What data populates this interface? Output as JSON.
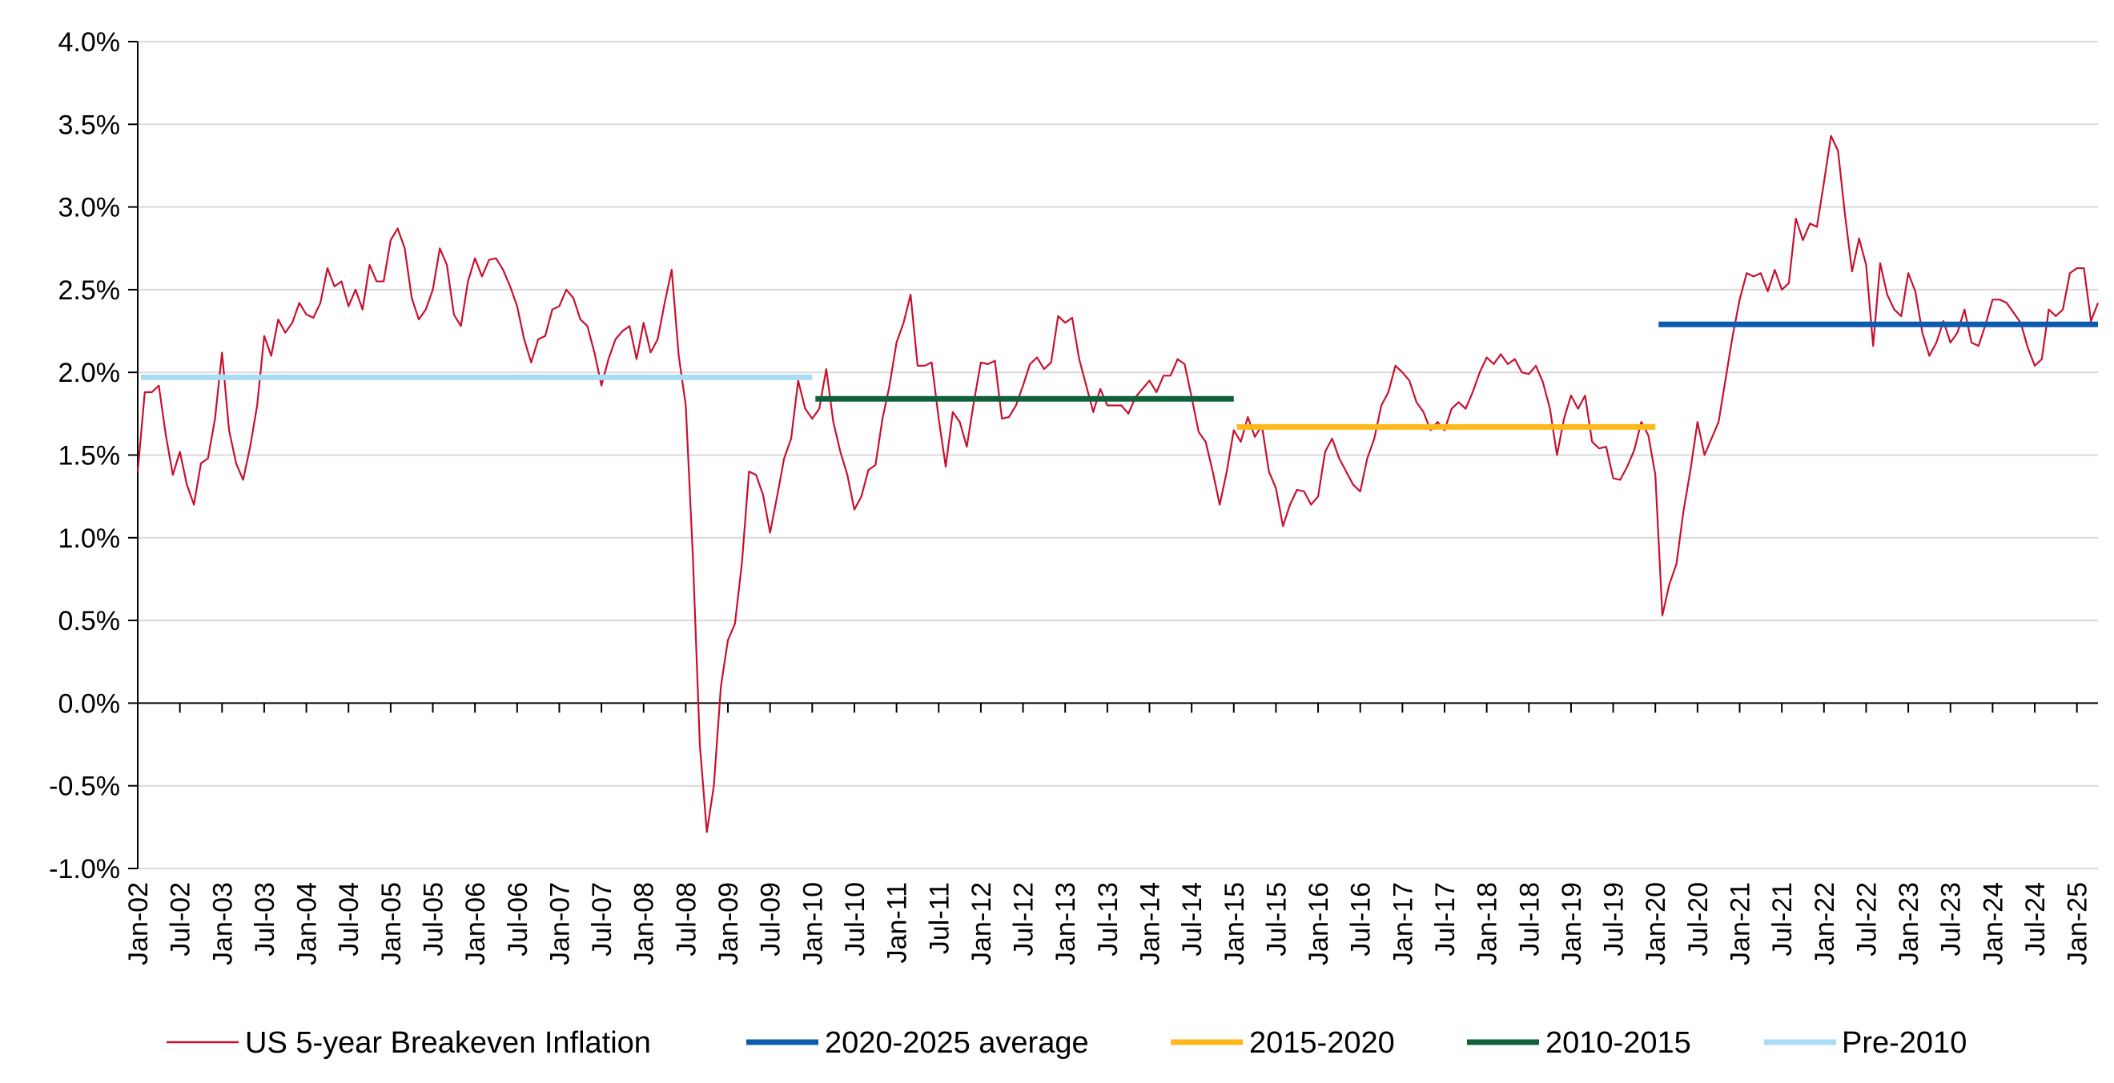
{
  "chart_data": {
    "type": "line",
    "title": "",
    "xlabel": "",
    "ylabel": "",
    "ylim": [
      -1.0,
      4.0
    ],
    "y_tick_values": [
      -1.0,
      -0.5,
      0.0,
      0.5,
      1.0,
      1.5,
      2.0,
      2.5,
      3.0,
      3.5,
      4.0
    ],
    "y_tick_labels": [
      "-1.0%",
      "-0.5%",
      "0.0%",
      "0.5%",
      "1.0%",
      "1.5%",
      "2.0%",
      "2.5%",
      "3.0%",
      "3.5%",
      "4.0%"
    ],
    "x_tick_labels": [
      "Jan-02",
      "Jul-02",
      "Jan-03",
      "Jul-03",
      "Jan-04",
      "Jul-04",
      "Jan-05",
      "Jul-05",
      "Jan-06",
      "Jul-06",
      "Jan-07",
      "Jul-07",
      "Jan-08",
      "Jul-08",
      "Jan-09",
      "Jul-09",
      "Jan-10",
      "Jul-10",
      "Jan-11",
      "Jul-11",
      "Jan-12",
      "Jul-12",
      "Jan-13",
      "Jul-13",
      "Jan-14",
      "Jul-14",
      "Jan-15",
      "Jul-15",
      "Jan-16",
      "Jul-16",
      "Jan-17",
      "Jul-17",
      "Jan-18",
      "Jul-18",
      "Jan-19",
      "Jul-19",
      "Jan-20",
      "Jul-20",
      "Jan-21",
      "Jul-21",
      "Jan-22",
      "Jul-22",
      "Jan-23",
      "Jul-23",
      "Jan-24",
      "Jul-24",
      "Jan-25"
    ],
    "x_range": [
      "Jan-02",
      "Apr-25"
    ],
    "grid": "horizontal",
    "legend_position": "bottom",
    "series": [
      {
        "name": "US 5-year Breakeven Inflation",
        "color": "#c8102e",
        "style": "thin-line",
        "start": "Jan-02",
        "frequency": "monthly",
        "values": [
          1.4,
          1.88,
          1.88,
          1.92,
          1.62,
          1.38,
          1.52,
          1.32,
          1.2,
          1.45,
          1.48,
          1.72,
          2.12,
          1.65,
          1.45,
          1.35,
          1.55,
          1.8,
          2.22,
          2.1,
          2.32,
          2.24,
          2.3,
          2.42,
          2.35,
          2.33,
          2.42,
          2.63,
          2.52,
          2.55,
          2.4,
          2.5,
          2.38,
          2.65,
          2.55,
          2.55,
          2.8,
          2.87,
          2.75,
          2.45,
          2.32,
          2.38,
          2.5,
          2.75,
          2.65,
          2.35,
          2.28,
          2.55,
          2.69,
          2.58,
          2.68,
          2.69,
          2.62,
          2.52,
          2.4,
          2.2,
          2.06,
          2.2,
          2.22,
          2.38,
          2.4,
          2.5,
          2.45,
          2.32,
          2.28,
          2.12,
          1.92,
          2.08,
          2.2,
          2.25,
          2.28,
          2.08,
          2.3,
          2.12,
          2.2,
          2.42,
          2.62,
          2.1,
          1.8,
          0.9,
          -0.25,
          -0.78,
          -0.5,
          0.1,
          0.38,
          0.48,
          0.85,
          1.4,
          1.38,
          1.26,
          1.03,
          1.25,
          1.48,
          1.6,
          1.95,
          1.78,
          1.72,
          1.78,
          2.02,
          1.7,
          1.52,
          1.38,
          1.17,
          1.25,
          1.41,
          1.44,
          1.72,
          1.92,
          2.18,
          2.3,
          2.47,
          2.04,
          2.04,
          2.06,
          1.72,
          1.43,
          1.76,
          1.7,
          1.55,
          1.82,
          2.06,
          2.05,
          2.07,
          1.72,
          1.73,
          1.8,
          1.92,
          2.05,
          2.09,
          2.02,
          2.06,
          2.34,
          2.3,
          2.33,
          2.08,
          1.92,
          1.76,
          1.9,
          1.8,
          1.8,
          1.8,
          1.75,
          1.85,
          1.9,
          1.95,
          1.88,
          1.98,
          1.98,
          2.08,
          2.05,
          1.85,
          1.64,
          1.58,
          1.4,
          1.2,
          1.4,
          1.65,
          1.58,
          1.73,
          1.61,
          1.68,
          1.4,
          1.3,
          1.07,
          1.2,
          1.29,
          1.28,
          1.2,
          1.25,
          1.52,
          1.6,
          1.48,
          1.4,
          1.32,
          1.28,
          1.48,
          1.6,
          1.8,
          1.88,
          2.04,
          2.0,
          1.95,
          1.82,
          1.76,
          1.65,
          1.7,
          1.65,
          1.78,
          1.82,
          1.78,
          1.88,
          2.0,
          2.09,
          2.05,
          2.11,
          2.05,
          2.08,
          2.0,
          1.99,
          2.04,
          1.94,
          1.78,
          1.5,
          1.72,
          1.86,
          1.78,
          1.86,
          1.58,
          1.54,
          1.55,
          1.36,
          1.35,
          1.43,
          1.53,
          1.7,
          1.62,
          1.38,
          0.53,
          0.72,
          0.84,
          1.16,
          1.41,
          1.7,
          1.5,
          1.6,
          1.7,
          1.96,
          2.22,
          2.44,
          2.6,
          2.58,
          2.6,
          2.49,
          2.62,
          2.5,
          2.54,
          2.93,
          2.8,
          2.9,
          2.88,
          3.15,
          3.43,
          3.34,
          2.95,
          2.61,
          2.81,
          2.65,
          2.16,
          2.66,
          2.47,
          2.38,
          2.34,
          2.6,
          2.49,
          2.24,
          2.1,
          2.18,
          2.31,
          2.18,
          2.24,
          2.38,
          2.18,
          2.16,
          2.29,
          2.44,
          2.44,
          2.42,
          2.36,
          2.3,
          2.15,
          2.04,
          2.08,
          2.38,
          2.34,
          2.38,
          2.6,
          2.63,
          2.63,
          2.31,
          2.42
        ]
      },
      {
        "name": "2020-2025 average",
        "color": "#0b5cad",
        "style": "flat-line",
        "start": "Jan-20",
        "end": "Apr-25",
        "value": 2.29
      },
      {
        "name": "2015-2020",
        "color": "#ffb81c",
        "style": "flat-line",
        "start": "Jan-15",
        "end": "Jan-20",
        "value": 1.67
      },
      {
        "name": "2010-2015",
        "color": "#10613a",
        "style": "flat-line",
        "start": "Jan-10",
        "end": "Jan-15",
        "value": 1.84
      },
      {
        "name": "Pre-2010",
        "color": "#a9dcf5",
        "style": "flat-line",
        "start": "Jan-02",
        "end": "Jan-10",
        "value": 1.97
      }
    ]
  }
}
